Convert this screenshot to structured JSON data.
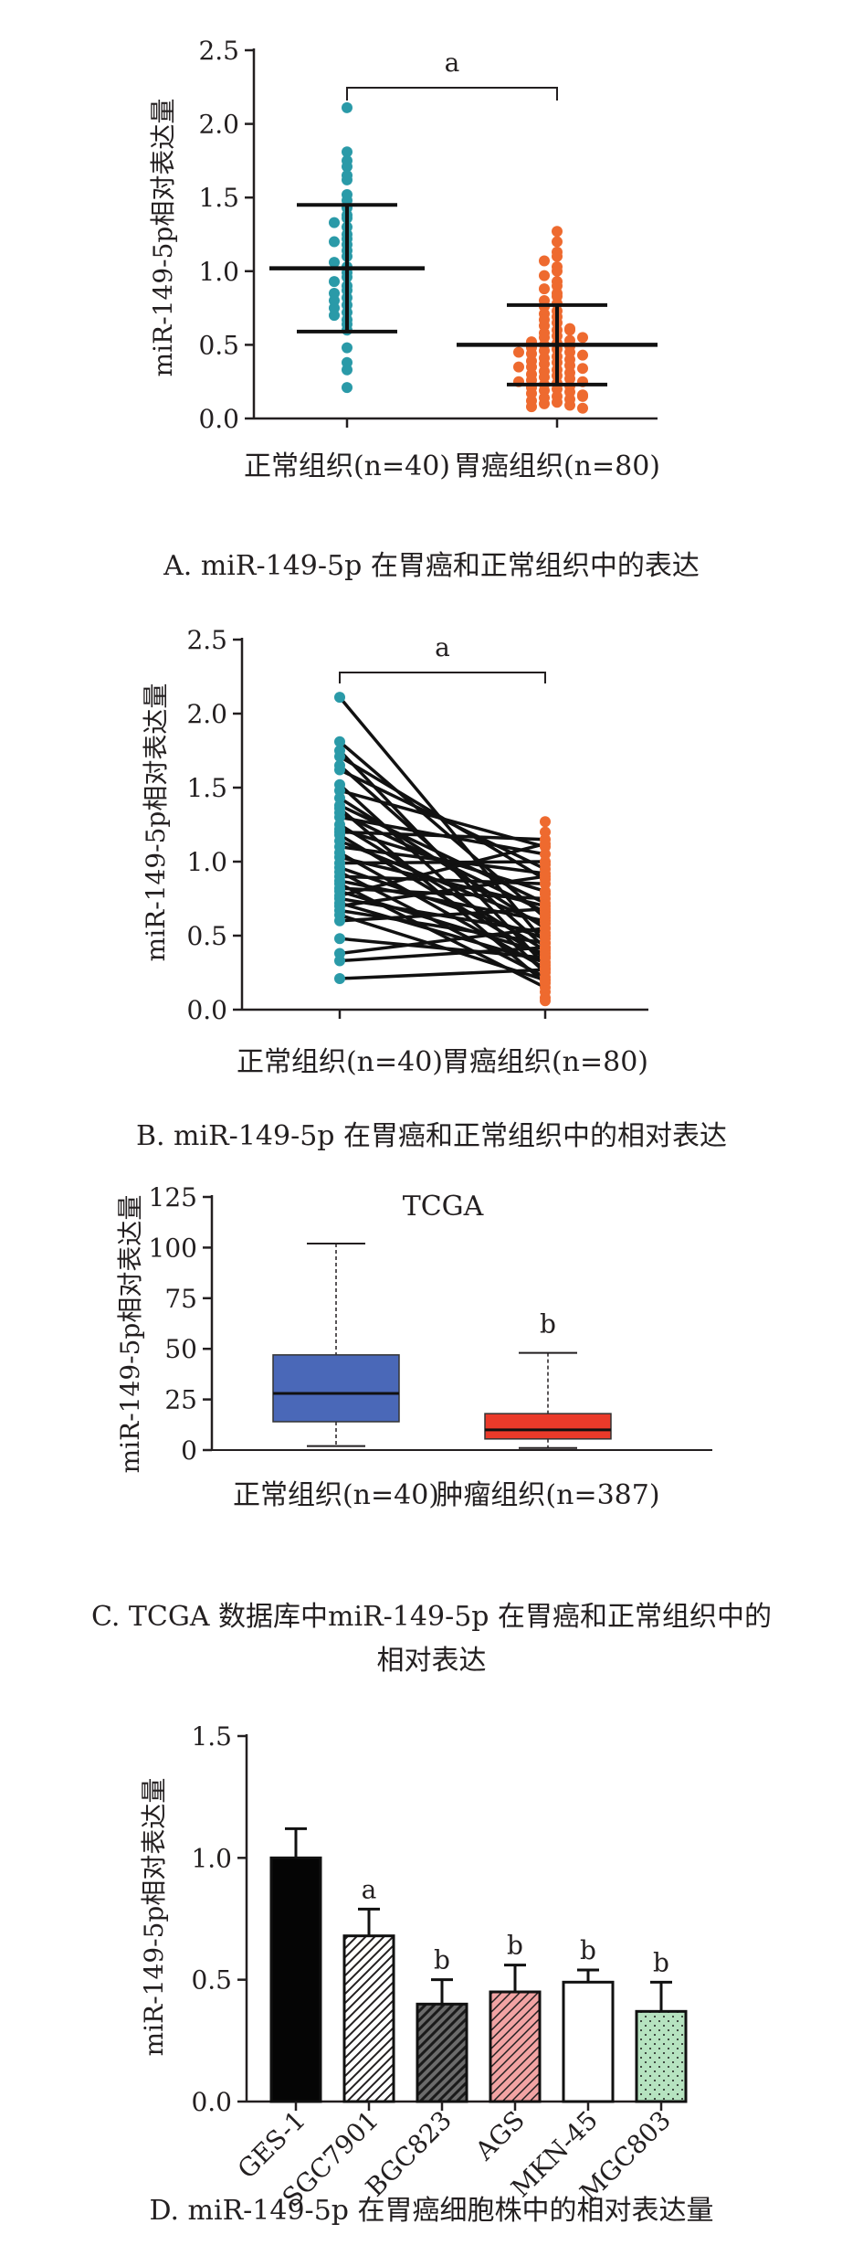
{
  "chart_data": [
    {
      "panel": "A",
      "type": "scatter",
      "subtype": "dot-plot with mean ± SD",
      "caption": "A. miR-149-5p 在胃癌和正常组织中的表达",
      "ylabel": "miR-149-5p相对表达量",
      "ylim": [
        0,
        2.5
      ],
      "yticks": [
        "0.0",
        "0.5",
        "1.0",
        "1.5",
        "2.0",
        "2.5"
      ],
      "categories": [
        "正常组织(n=40)",
        "胃癌组织(n=80)"
      ],
      "means": [
        1.02,
        0.5
      ],
      "sd": [
        0.43,
        0.27
      ],
      "significance": "a",
      "colors": [
        "#2a9aa8",
        "#ee6a2f"
      ],
      "series": [
        {
          "name": "正常组织(n=40)",
          "values": [
            2.11,
            1.81,
            1.75,
            1.71,
            1.65,
            1.62,
            1.52,
            1.48,
            1.43,
            1.38,
            1.36,
            1.33,
            1.3,
            1.25,
            1.22,
            1.2,
            1.18,
            1.14,
            1.1,
            1.06,
            1.03,
            0.99,
            0.96,
            0.93,
            0.9,
            0.87,
            0.85,
            0.82,
            0.8,
            0.77,
            0.75,
            0.72,
            0.7,
            0.67,
            0.64,
            0.6,
            0.48,
            0.38,
            0.33,
            0.21
          ]
        },
        {
          "name": "胃癌组织(n=80)",
          "values": [
            1.27,
            1.2,
            1.13,
            1.1,
            1.07,
            1.03,
            1.0,
            0.97,
            0.93,
            0.9,
            0.88,
            0.85,
            0.83,
            0.8,
            0.78,
            0.76,
            0.73,
            0.71,
            0.69,
            0.67,
            0.65,
            0.63,
            0.61,
            0.6,
            0.58,
            0.56,
            0.55,
            0.53,
            0.52,
            0.51,
            0.5,
            0.49,
            0.48,
            0.47,
            0.46,
            0.45,
            0.44,
            0.43,
            0.42,
            0.41,
            0.4,
            0.39,
            0.38,
            0.37,
            0.36,
            0.35,
            0.34,
            0.33,
            0.32,
            0.31,
            0.3,
            0.29,
            0.28,
            0.27,
            0.26,
            0.25,
            0.24,
            0.23,
            0.22,
            0.21,
            0.2,
            0.19,
            0.18,
            0.17,
            0.16,
            0.15,
            0.14,
            0.13,
            0.12,
            0.11,
            0.1,
            0.09,
            0.08,
            0.07,
            0.6,
            0.55,
            0.45,
            0.35,
            0.25,
            0.15
          ]
        }
      ]
    },
    {
      "panel": "B",
      "type": "line",
      "subtype": "paired before-after",
      "caption": "B. miR-149-5p 在胃癌和正常组织中的相对表达",
      "ylabel": "miR-149-5p相对表达量",
      "ylim": [
        0,
        2.5
      ],
      "yticks": [
        "0.0",
        "0.5",
        "1.0",
        "1.5",
        "2.0",
        "2.5"
      ],
      "categories": [
        "正常组织(n=40)",
        "胃癌组织(n=80)"
      ],
      "significance": "a",
      "colors": [
        "#2a9aa8",
        "#ee6a2f"
      ],
      "pairs": [
        [
          2.11,
          0.45
        ],
        [
          1.81,
          0.62
        ],
        [
          1.75,
          0.3
        ],
        [
          1.71,
          0.88
        ],
        [
          1.65,
          0.42
        ],
        [
          1.62,
          0.95
        ],
        [
          1.52,
          0.25
        ],
        [
          1.48,
          1.1
        ],
        [
          1.43,
          0.55
        ],
        [
          1.38,
          0.72
        ],
        [
          1.36,
          0.18
        ],
        [
          1.33,
          0.66
        ],
        [
          1.3,
          1.05
        ],
        [
          1.25,
          0.4
        ],
        [
          1.22,
          0.8
        ],
        [
          1.2,
          1.15
        ],
        [
          1.18,
          0.35
        ],
        [
          1.14,
          0.58
        ],
        [
          1.1,
          0.92
        ],
        [
          1.06,
          0.28
        ],
        [
          1.03,
          0.7
        ],
        [
          0.99,
          1.0
        ],
        [
          0.96,
          0.48
        ],
        [
          0.93,
          0.22
        ],
        [
          0.9,
          0.85
        ],
        [
          0.87,
          0.6
        ],
        [
          0.85,
          0.15
        ],
        [
          0.82,
          0.75
        ],
        [
          0.8,
          0.38
        ],
        [
          0.77,
          1.12
        ],
        [
          0.75,
          0.52
        ],
        [
          0.72,
          0.32
        ],
        [
          0.7,
          0.9
        ],
        [
          0.67,
          0.45
        ],
        [
          0.64,
          0.2
        ],
        [
          0.6,
          0.68
        ],
        [
          0.48,
          0.35
        ],
        [
          0.38,
          0.55
        ],
        [
          0.33,
          0.42
        ],
        [
          0.21,
          0.27
        ]
      ],
      "extra_cancer_values": [
        1.27,
        1.2,
        0.98,
        0.78,
        0.64,
        0.5,
        0.36,
        0.12,
        0.08,
        0.06
      ]
    },
    {
      "panel": "C",
      "type": "box",
      "title": "TCGA",
      "caption_lines": [
        "C. TCGA 数据库中miR-149-5p 在胃癌和正常组织中的",
        "相对表达"
      ],
      "ylabel": "miR-149-5p相对表达量",
      "ylim": [
        0,
        125
      ],
      "yticks": [
        "0",
        "25",
        "50",
        "75",
        "100",
        "125"
      ],
      "categories": [
        "正常组织(n=40)",
        "肿瘤组织(n=387)"
      ],
      "boxes": [
        {
          "name": "正常组织(n=40)",
          "min": 2,
          "q1": 14,
          "median": 28,
          "q3": 47,
          "max": 102,
          "color": "#4a68b8"
        },
        {
          "name": "肿瘤组织(n=387)",
          "min": 1,
          "q1": 5.5,
          "median": 10,
          "q3": 18,
          "max": 48,
          "color": "#ea3a2a",
          "significance": "b"
        }
      ]
    },
    {
      "panel": "D",
      "type": "bar",
      "caption": "D. miR-149-5p 在胃癌细胞株中的相对表达量",
      "ylabel": "miR-149-5p相对表达量",
      "ylim": [
        0,
        1.5
      ],
      "yticks": [
        "0.0",
        "0.5",
        "1.0",
        "1.5"
      ],
      "categories": [
        "GES-1",
        "SGC7901",
        "BGC823",
        "AGS",
        "MKN-45",
        "MGC803"
      ],
      "values": [
        1.0,
        0.68,
        0.4,
        0.45,
        0.49,
        0.37
      ],
      "errors": [
        0.12,
        0.11,
        0.1,
        0.11,
        0.05,
        0.12
      ],
      "significance": [
        "",
        "a",
        "b",
        "b",
        "b",
        "b"
      ],
      "patterns": [
        "solid-black",
        "diagonal-white",
        "diagonal-dark",
        "diagonal-pink",
        "white",
        "dotted-green"
      ]
    }
  ]
}
